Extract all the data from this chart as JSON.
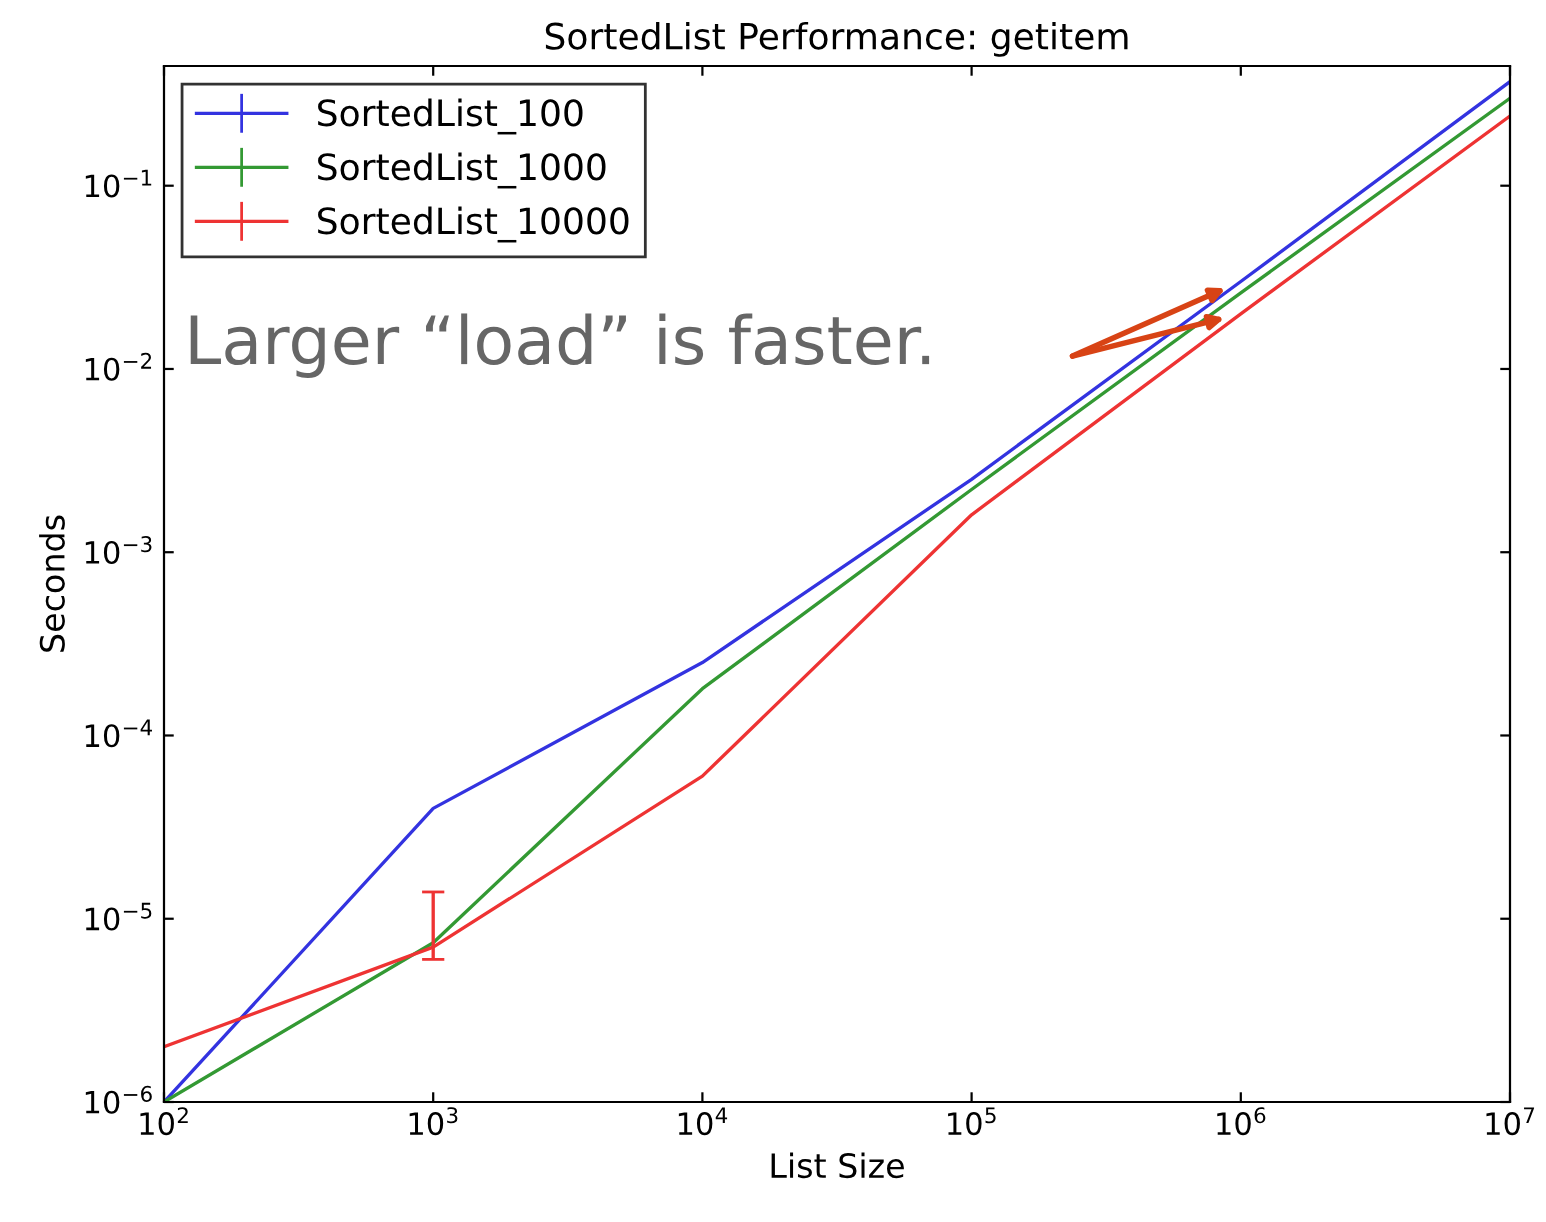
{
  "chart_data": {
    "type": "line",
    "title": "SortedList Performance: getitem",
    "xlabel": "List Size",
    "ylabel": "Seconds",
    "x": [
      100,
      1000,
      10000,
      100000,
      1000000,
      10000000
    ],
    "series": [
      {
        "name": "SortedList_100",
        "color": "#3333e0",
        "values": [
          1e-06,
          4e-05,
          0.00025,
          0.0025,
          0.03,
          0.37
        ]
      },
      {
        "name": "SortedList_1000",
        "color": "#339933",
        "values": [
          1e-06,
          7.4e-06,
          0.00018,
          0.0022,
          0.026,
          0.3
        ]
      },
      {
        "name": "SortedList_10000",
        "color": "#ee3333",
        "values": [
          2e-06,
          7e-06,
          6e-05,
          0.0016,
          0.02,
          0.24
        ],
        "errors": [
          null,
          [
            6e-06,
            1.4e-05
          ],
          null,
          null,
          null,
          null
        ]
      }
    ],
    "annotations": [
      "Larger “load” is faster."
    ],
    "log": "xy",
    "xlim": [
      100,
      10000000
    ],
    "ylim": [
      1e-06,
      0.45
    ],
    "xticks": [
      {
        "value": 100,
        "label": "10$^{2}$"
      },
      {
        "value": 1000,
        "label": "10$^{3}$"
      },
      {
        "value": 10000,
        "label": "10$^{4}$"
      },
      {
        "value": 100000,
        "label": "10$^{5}$"
      },
      {
        "value": 1000000,
        "label": "10$^{6}$"
      },
      {
        "value": 10000000,
        "label": "10$^{7}$"
      }
    ],
    "yticks": [
      {
        "value": 1e-06,
        "label": "10$^{−6}$"
      },
      {
        "value": 1e-05,
        "label": "10$^{−5}$"
      },
      {
        "value": 0.0001,
        "label": "10$^{−4}$"
      },
      {
        "value": 0.001,
        "label": "10$^{−3}$"
      },
      {
        "value": 0.01,
        "label": "10$^{−2}$"
      },
      {
        "value": 0.1,
        "label": "10$^{−1}$"
      }
    ],
    "legend": "top left"
  }
}
